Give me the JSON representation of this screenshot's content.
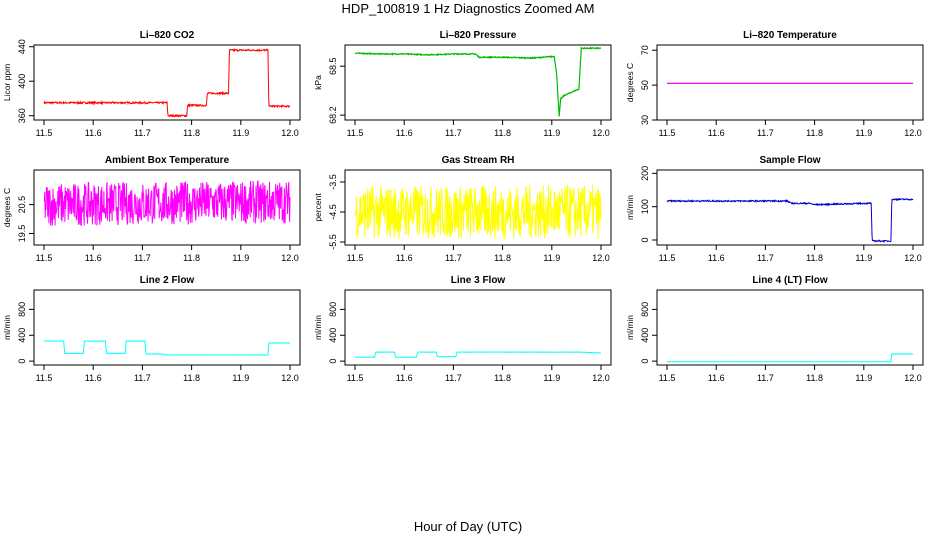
{
  "figure": {
    "title": "HDP_100819  1 Hz Diagnostics Zoomed AM",
    "xlabel": "Hour of Day (UTC)"
  },
  "chart_data": [
    {
      "type": "line",
      "title": "Li–820 CO2",
      "ylabel": "Licor ppm",
      "color": "#ff0000",
      "xlim": [
        11.5,
        12.0
      ],
      "xticks": [
        "11.5",
        "11.6",
        "11.7",
        "11.8",
        "11.9",
        "12.0"
      ],
      "ylim": [
        355,
        442
      ],
      "yticks": [
        "360",
        "400",
        "440"
      ],
      "series": [
        {
          "noise": 1,
          "x": [
            11.5,
            11.75,
            11.752,
            11.79,
            11.792,
            11.83,
            11.832,
            11.875,
            11.877,
            11.955,
            11.957,
            12.0
          ],
          "y": [
            375,
            375,
            360,
            360,
            372,
            372,
            386,
            386,
            436,
            436,
            371,
            371
          ]
        }
      ]
    },
    {
      "type": "line",
      "title": "Li–820 Pressure",
      "ylabel": "kPa",
      "color": "#00bb00",
      "xlim": [
        11.5,
        12.0
      ],
      "xticks": [
        "11.5",
        "11.6",
        "11.7",
        "11.8",
        "11.9",
        "12.0"
      ],
      "ylim": [
        68.17,
        68.63
      ],
      "yticks": [
        "68.2",
        "68.5"
      ],
      "series": [
        {
          "noise": 0.003,
          "x": [
            11.5,
            11.55,
            11.6,
            11.65,
            11.7,
            11.745,
            11.752,
            11.8,
            11.86,
            11.905,
            11.91,
            11.915,
            11.918,
            11.925,
            11.94,
            11.955,
            11.96,
            12.0
          ],
          "y": [
            68.58,
            68.575,
            68.575,
            68.57,
            68.575,
            68.575,
            68.555,
            68.555,
            68.55,
            68.56,
            68.45,
            68.19,
            68.3,
            68.32,
            68.34,
            68.36,
            68.61,
            68.61
          ]
        }
      ]
    },
    {
      "type": "line",
      "title": "Li–820 Temperature",
      "ylabel": "degrees C",
      "color": "#ff00ff",
      "xlim": [
        11.5,
        12.0
      ],
      "xticks": [
        "11.5",
        "11.6",
        "11.7",
        "11.8",
        "11.9",
        "12.0"
      ],
      "ylim": [
        30,
        73
      ],
      "yticks": [
        "30",
        "50",
        "70"
      ],
      "series": [
        {
          "noise": 0,
          "x": [
            11.5,
            12.0
          ],
          "y": [
            51.0,
            51.0
          ]
        }
      ]
    },
    {
      "type": "line",
      "title": "Ambient Box Temperature",
      "ylabel": "degrees C",
      "color": "#ff00ff",
      "xlim": [
        11.5,
        12.0
      ],
      "xticks": [
        "11.5",
        "11.6",
        "11.7",
        "11.8",
        "11.9",
        "12.0"
      ],
      "ylim": [
        19.1,
        21.7
      ],
      "yticks": [
        "19.5",
        "20.5"
      ],
      "series": [
        {
          "noise": 0.75,
          "x": [
            11.5,
            12.0
          ],
          "y": [
            20.5,
            20.6
          ]
        }
      ]
    },
    {
      "type": "line",
      "title": "Gas Stream RH",
      "ylabel": "percent",
      "color": "#ffff00",
      "xlim": [
        11.5,
        12.0
      ],
      "xticks": [
        "11.5",
        "11.6",
        "11.7",
        "11.8",
        "11.9",
        "12.0"
      ],
      "ylim": [
        -5.6,
        -3.1
      ],
      "yticks": [
        "-5.5",
        "-4.5",
        "-3.5"
      ],
      "series": [
        {
          "noise": 0.9,
          "x": [
            11.5,
            12.0
          ],
          "y": [
            -4.5,
            -4.5
          ]
        }
      ]
    },
    {
      "type": "line",
      "title": "Sample Flow",
      "ylabel": "ml/min",
      "color": "#0000cc",
      "xlim": [
        11.5,
        12.0
      ],
      "xticks": [
        "11.5",
        "11.6",
        "11.7",
        "11.8",
        "11.9",
        "12.0"
      ],
      "ylim": [
        -15,
        210
      ],
      "yticks": [
        "0",
        "100",
        "200"
      ],
      "series": [
        {
          "noise": 2,
          "x": [
            11.5,
            11.745,
            11.752,
            11.79,
            11.8,
            11.905,
            11.915,
            11.917,
            11.955,
            11.957,
            12.0
          ],
          "y": [
            117,
            117,
            110,
            110,
            106,
            110,
            110,
            -3,
            -3,
            122,
            122
          ]
        }
      ]
    },
    {
      "type": "line",
      "title": "Line 2 Flow",
      "ylabel": "ml/min",
      "color": "#00ffff",
      "xlim": [
        11.5,
        12.0
      ],
      "xticks": [
        "11.5",
        "11.6",
        "11.7",
        "11.8",
        "11.9",
        "12.0"
      ],
      "ylim": [
        -60,
        1100
      ],
      "yticks": [
        "0",
        "400",
        "800"
      ],
      "series": [
        {
          "noise": 2,
          "x": [
            11.5,
            11.54,
            11.542,
            11.58,
            11.582,
            11.625,
            11.627,
            11.665,
            11.667,
            11.705,
            11.707,
            11.74,
            11.75,
            11.955,
            11.957,
            12.0
          ],
          "y": [
            310,
            310,
            120,
            120,
            310,
            310,
            120,
            120,
            310,
            310,
            110,
            110,
            95,
            95,
            280,
            280
          ]
        }
      ]
    },
    {
      "type": "line",
      "title": "Line 3 Flow",
      "ylabel": "ml/min",
      "color": "#00ffff",
      "xlim": [
        11.5,
        12.0
      ],
      "xticks": [
        "11.5",
        "11.6",
        "11.7",
        "11.8",
        "11.9",
        "12.0"
      ],
      "ylim": [
        -60,
        1100
      ],
      "yticks": [
        "0",
        "400",
        "800"
      ],
      "series": [
        {
          "noise": 2,
          "x": [
            11.5,
            11.54,
            11.542,
            11.58,
            11.582,
            11.625,
            11.627,
            11.665,
            11.667,
            11.705,
            11.707,
            11.955,
            12.0
          ],
          "y": [
            60,
            60,
            140,
            140,
            60,
            60,
            140,
            140,
            70,
            70,
            140,
            140,
            125
          ]
        }
      ]
    },
    {
      "type": "line",
      "title": "Line 4 (LT) Flow",
      "ylabel": "ml/min",
      "color": "#00ffff",
      "xlim": [
        11.5,
        12.0
      ],
      "xticks": [
        "11.5",
        "11.6",
        "11.7",
        "11.8",
        "11.9",
        "12.0"
      ],
      "ylim": [
        -60,
        1100
      ],
      "yticks": [
        "0",
        "400",
        "800"
      ],
      "series": [
        {
          "noise": 2,
          "x": [
            11.5,
            11.955,
            11.957,
            11.96,
            12.0
          ],
          "y": [
            -10,
            -10,
            120,
            110,
            110
          ]
        }
      ]
    }
  ]
}
